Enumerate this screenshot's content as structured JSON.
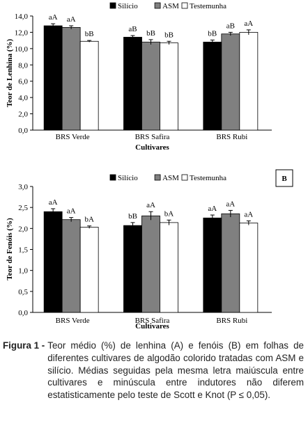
{
  "chart_data": [
    {
      "type": "bar",
      "panel_label": "",
      "categories": [
        "BRS Verde",
        "BRS Safira",
        "BRS Rubi"
      ],
      "xlabel": "Cultivares",
      "ylabel": "Teor de Lenhina (%)",
      "ylim": [
        0,
        14
      ],
      "yticks": [
        "0,0",
        "2,0",
        "4,0",
        "6,0",
        "8,0",
        "10,0",
        "12,0",
        "14,0"
      ],
      "grid": false,
      "legend_position": "top-right",
      "series": [
        {
          "name": "Silício",
          "color": "#000000",
          "values": [
            12.8,
            11.4,
            10.8
          ],
          "errors": [
            0.25,
            0.2,
            0.25
          ],
          "labels": [
            "aA",
            "aB",
            "bB"
          ]
        },
        {
          "name": "ASM",
          "color": "#808080",
          "values": [
            12.6,
            10.8,
            11.8
          ],
          "errors": [
            0.2,
            0.3,
            0.2
          ],
          "labels": [
            "aA",
            "bB",
            "aB"
          ]
        },
        {
          "name": "Testemunha",
          "color": "#ffffff",
          "values": [
            10.9,
            10.7,
            12.0
          ],
          "errors": [
            0.1,
            0.2,
            0.3
          ],
          "labels": [
            "bB",
            "bB",
            "aA"
          ]
        }
      ]
    },
    {
      "type": "bar",
      "panel_label": "B",
      "categories": [
        "BRS Verde",
        "BRS Safira",
        "BRS Rubi"
      ],
      "xlabel": "Cultivares",
      "ylabel": "Teor de Fenóis (%)",
      "ylim": [
        0,
        3
      ],
      "yticks": [
        "0,0",
        "0,5",
        "1,0",
        "1,5",
        "2,0",
        "2,5",
        "3,0"
      ],
      "grid": false,
      "legend_position": "top-right",
      "series": [
        {
          "name": "Silício",
          "color": "#000000",
          "values": [
            2.4,
            2.07,
            2.25
          ],
          "errors": [
            0.07,
            0.07,
            0.07
          ],
          "labels": [
            "aA",
            "bB",
            "aA"
          ]
        },
        {
          "name": "ASM",
          "color": "#808080",
          "values": [
            2.21,
            2.3,
            2.35
          ],
          "errors": [
            0.05,
            0.1,
            0.08
          ],
          "labels": [
            "aA",
            "aA",
            "aA"
          ]
        },
        {
          "name": "Testemunha",
          "color": "#ffffff",
          "values": [
            2.03,
            2.14,
            2.13
          ],
          "errors": [
            0.03,
            0.06,
            0.05
          ],
          "labels": [
            "bA",
            "bA",
            "aA"
          ]
        }
      ]
    }
  ],
  "caption": {
    "figure_label": "Figura 1 -",
    "text": "Teor médio (%) de lenhina (A) e fenóis (B) em folhas de diferentes cultivares de algodão colorido tratadas com ASM e silício. Médias seguidas pela mesma letra maiúscula entre cultivares e minúscula entre indutores não diferem estatisticamente pelo teste de Scott e Knot (P ≤ 0,05)."
  }
}
